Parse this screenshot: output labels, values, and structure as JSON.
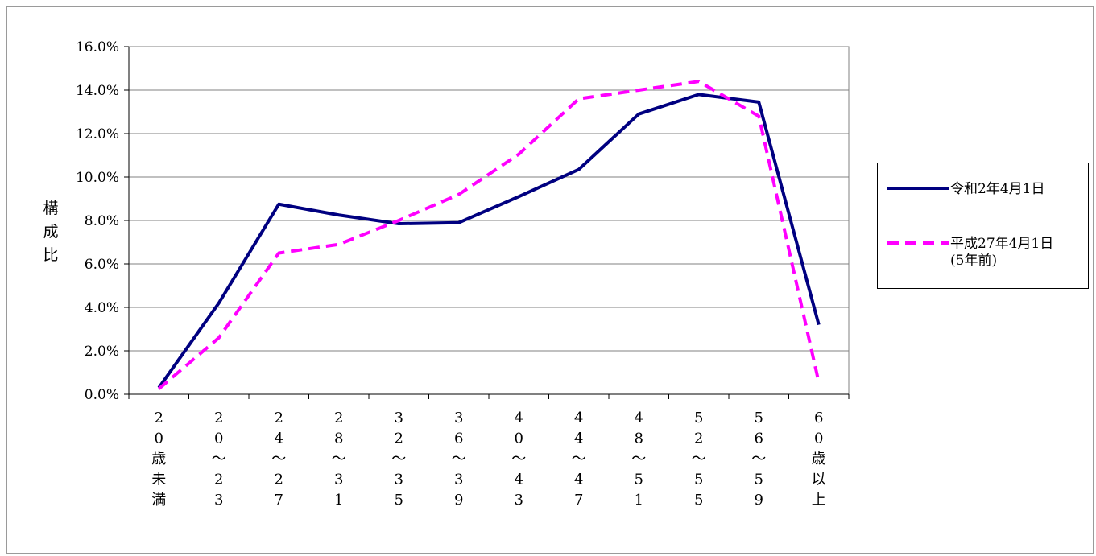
{
  "chart_data": {
    "type": "line",
    "title": "",
    "xlabel": "",
    "ylabel": "構成比",
    "ylim": [
      0,
      16
    ],
    "yticks": [
      "0.0%",
      "2.0%",
      "4.0%",
      "6.0%",
      "8.0%",
      "10.0%",
      "12.0%",
      "14.0%",
      "16.0%"
    ],
    "categories": [
      "20歳未満",
      "20〜23",
      "24〜27",
      "28〜31",
      "32〜35",
      "36〜39",
      "40〜43",
      "44〜47",
      "48〜51",
      "52〜55",
      "56〜59",
      "60歳以上"
    ],
    "category_label_chars": [
      [
        "2",
        "0",
        "歳",
        "未",
        "満"
      ],
      [
        "2",
        "0",
        "〜",
        "2",
        "3"
      ],
      [
        "2",
        "4",
        "〜",
        "2",
        "7"
      ],
      [
        "2",
        "8",
        "〜",
        "3",
        "1"
      ],
      [
        "3",
        "2",
        "〜",
        "3",
        "5"
      ],
      [
        "3",
        "6",
        "〜",
        "3",
        "9"
      ],
      [
        "4",
        "0",
        "〜",
        "4",
        "3"
      ],
      [
        "4",
        "4",
        "〜",
        "4",
        "7"
      ],
      [
        "4",
        "8",
        "〜",
        "5",
        "1"
      ],
      [
        "5",
        "2",
        "〜",
        "5",
        "5"
      ],
      [
        "5",
        "6",
        "〜",
        "5",
        "9"
      ],
      [
        "6",
        "0",
        "歳",
        "以",
        "上"
      ]
    ],
    "grid": true,
    "legend_position": "right",
    "series": [
      {
        "name": "令和2年4月1日",
        "color": "#000080",
        "dash": "solid",
        "values": [
          0.3,
          4.2,
          8.75,
          8.25,
          7.85,
          7.9,
          9.1,
          10.35,
          12.9,
          13.8,
          13.45,
          3.2
        ]
      },
      {
        "name": "平成27年4月1日\n(5年前)",
        "color": "#ff00ff",
        "dash": "dashed",
        "values": [
          0.25,
          2.6,
          6.5,
          6.9,
          8.0,
          9.2,
          11.05,
          13.6,
          14.0,
          14.4,
          12.8,
          0.55
        ]
      }
    ]
  }
}
